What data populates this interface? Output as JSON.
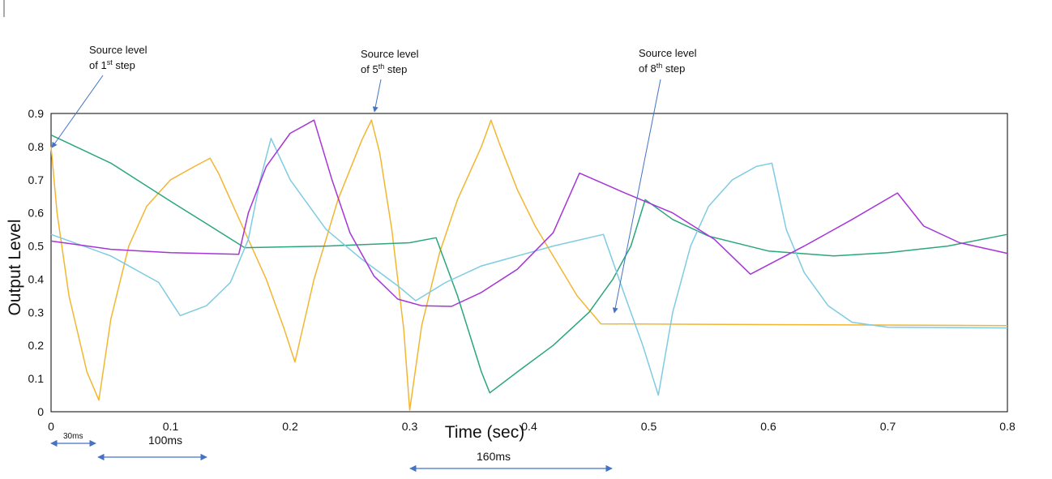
{
  "chart_data": {
    "type": "line",
    "title": "",
    "xlabel": "Time (sec)",
    "ylabel": "Output Level",
    "xlim": [
      0,
      0.8
    ],
    "ylim": [
      0,
      0.9
    ],
    "xticks": [
      "0",
      "0.1",
      "0.2",
      "0.3",
      "0.4",
      "0.5",
      "0.6",
      "0.7",
      "0.8"
    ],
    "yticks": [
      "0",
      "0.1",
      "0.2",
      "0.3",
      "0.4",
      "0.5",
      "0.6",
      "0.7",
      "0.8",
      "0.9"
    ],
    "grid": false,
    "legend": false,
    "series": [
      {
        "color": "#f2b632",
        "points": [
          [
            0,
            0.8
          ],
          [
            0.005,
            0.6
          ],
          [
            0.015,
            0.35
          ],
          [
            0.03,
            0.12
          ],
          [
            0.04,
            0.035
          ],
          [
            0.05,
            0.28
          ],
          [
            0.065,
            0.5
          ],
          [
            0.08,
            0.62
          ],
          [
            0.1,
            0.7
          ],
          [
            0.12,
            0.74
          ],
          [
            0.133,
            0.765
          ],
          [
            0.14,
            0.72
          ],
          [
            0.16,
            0.56
          ],
          [
            0.18,
            0.4
          ],
          [
            0.195,
            0.25
          ],
          [
            0.204,
            0.15
          ],
          [
            0.22,
            0.4
          ],
          [
            0.24,
            0.64
          ],
          [
            0.26,
            0.82
          ],
          [
            0.268,
            0.88
          ],
          [
            0.275,
            0.78
          ],
          [
            0.285,
            0.55
          ],
          [
            0.295,
            0.25
          ],
          [
            0.3,
            0.005
          ],
          [
            0.31,
            0.26
          ],
          [
            0.325,
            0.48
          ],
          [
            0.34,
            0.64
          ],
          [
            0.36,
            0.8
          ],
          [
            0.368,
            0.88
          ],
          [
            0.375,
            0.81
          ],
          [
            0.39,
            0.67
          ],
          [
            0.405,
            0.56
          ],
          [
            0.42,
            0.47
          ],
          [
            0.44,
            0.35
          ],
          [
            0.46,
            0.265
          ],
          [
            0.8,
            0.26
          ]
        ]
      },
      {
        "color": "#2aa67c",
        "points": [
          [
            0,
            0.835
          ],
          [
            0.05,
            0.75
          ],
          [
            0.1,
            0.635
          ],
          [
            0.14,
            0.545
          ],
          [
            0.162,
            0.495
          ],
          [
            0.23,
            0.5
          ],
          [
            0.3,
            0.51
          ],
          [
            0.322,
            0.525
          ],
          [
            0.34,
            0.35
          ],
          [
            0.36,
            0.12
          ],
          [
            0.367,
            0.057
          ],
          [
            0.39,
            0.12
          ],
          [
            0.42,
            0.2
          ],
          [
            0.45,
            0.3
          ],
          [
            0.47,
            0.4
          ],
          [
            0.485,
            0.5
          ],
          [
            0.497,
            0.64
          ],
          [
            0.52,
            0.58
          ],
          [
            0.55,
            0.53
          ],
          [
            0.6,
            0.485
          ],
          [
            0.655,
            0.47
          ],
          [
            0.7,
            0.48
          ],
          [
            0.75,
            0.5
          ],
          [
            0.8,
            0.535
          ]
        ]
      },
      {
        "color": "#7ecbe3",
        "points": [
          [
            0,
            0.535
          ],
          [
            0.05,
            0.47
          ],
          [
            0.09,
            0.39
          ],
          [
            0.108,
            0.29
          ],
          [
            0.13,
            0.32
          ],
          [
            0.15,
            0.39
          ],
          [
            0.165,
            0.52
          ],
          [
            0.175,
            0.7
          ],
          [
            0.184,
            0.825
          ],
          [
            0.2,
            0.7
          ],
          [
            0.23,
            0.55
          ],
          [
            0.26,
            0.46
          ],
          [
            0.29,
            0.38
          ],
          [
            0.305,
            0.335
          ],
          [
            0.33,
            0.39
          ],
          [
            0.36,
            0.44
          ],
          [
            0.39,
            0.47
          ],
          [
            0.42,
            0.5
          ],
          [
            0.462,
            0.535
          ],
          [
            0.48,
            0.35
          ],
          [
            0.495,
            0.2
          ],
          [
            0.508,
            0.05
          ],
          [
            0.52,
            0.3
          ],
          [
            0.535,
            0.5
          ],
          [
            0.55,
            0.62
          ],
          [
            0.57,
            0.7
          ],
          [
            0.59,
            0.74
          ],
          [
            0.603,
            0.75
          ],
          [
            0.615,
            0.55
          ],
          [
            0.63,
            0.42
          ],
          [
            0.65,
            0.32
          ],
          [
            0.67,
            0.27
          ],
          [
            0.7,
            0.255
          ],
          [
            0.8,
            0.253
          ]
        ]
      },
      {
        "color": "#a535d8",
        "points": [
          [
            0,
            0.515
          ],
          [
            0.05,
            0.49
          ],
          [
            0.1,
            0.48
          ],
          [
            0.157,
            0.475
          ],
          [
            0.165,
            0.6
          ],
          [
            0.18,
            0.74
          ],
          [
            0.2,
            0.84
          ],
          [
            0.22,
            0.88
          ],
          [
            0.235,
            0.7
          ],
          [
            0.25,
            0.54
          ],
          [
            0.27,
            0.41
          ],
          [
            0.29,
            0.34
          ],
          [
            0.31,
            0.32
          ],
          [
            0.335,
            0.318
          ],
          [
            0.36,
            0.36
          ],
          [
            0.39,
            0.43
          ],
          [
            0.42,
            0.54
          ],
          [
            0.442,
            0.72
          ],
          [
            0.48,
            0.66
          ],
          [
            0.52,
            0.6
          ],
          [
            0.555,
            0.52
          ],
          [
            0.585,
            0.415
          ],
          [
            0.63,
            0.5
          ],
          [
            0.67,
            0.58
          ],
          [
            0.708,
            0.66
          ],
          [
            0.73,
            0.56
          ],
          [
            0.76,
            0.51
          ],
          [
            0.8,
            0.478
          ]
        ]
      }
    ]
  },
  "annotations": [
    {
      "line1": "Source level",
      "line2_pre": "of 1",
      "sup": "st",
      "line2_post": " step"
    },
    {
      "line1": "Source level",
      "line2_pre": "of 5",
      "sup": "th",
      "line2_post": " step"
    },
    {
      "line1": "Source level",
      "line2_pre": "of 8",
      "sup": "th",
      "line2_post": " step"
    }
  ],
  "durations": {
    "d1": "30ms",
    "d2": "100ms",
    "d3": "160ms"
  },
  "colors": {
    "arrow": "#4472c4",
    "axis": "#000000"
  }
}
